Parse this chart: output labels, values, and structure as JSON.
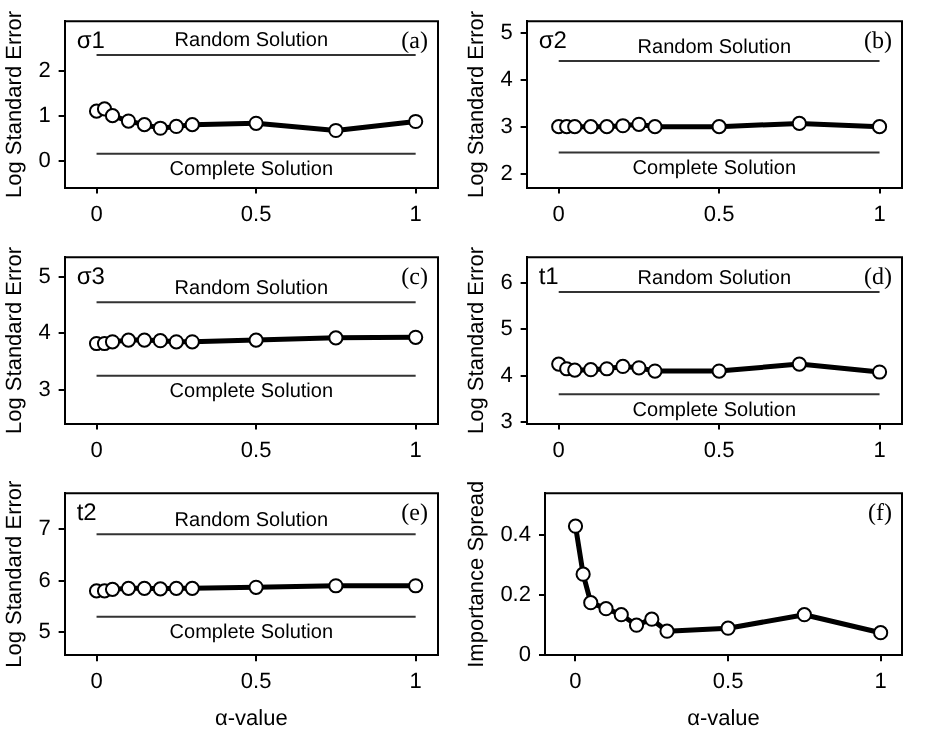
{
  "chart_data": [
    {
      "type": "line",
      "ylabel": "Log Standard Error",
      "x": [
        0,
        0.025,
        0.05,
        0.1,
        0.15,
        0.2,
        0.25,
        0.3,
        0.5,
        0.75,
        1
      ],
      "series": [
        {
          "color": "#000000",
          "values": [
            1.1,
            1.15,
            1.0,
            0.88,
            0.8,
            0.72,
            0.76,
            0.8,
            0.83,
            0.67,
            0.87
          ]
        }
      ],
      "xlim": [
        -0.1,
        1.07
      ],
      "xticks": [
        0,
        0.5,
        1
      ],
      "ylim": [
        -0.6,
        3.1
      ],
      "yticks": [
        0,
        1,
        2
      ],
      "marker": "circle",
      "grid": false,
      "legend": false,
      "annotations": [
        "σ1",
        "(a)"
      ],
      "ref_lines": [
        {
          "axis": "y",
          "value": 2.35,
          "label": "Random Solution",
          "color": "#333333"
        },
        {
          "axis": "y",
          "value": 0.15,
          "label": "Complete Solution",
          "color": "#333333"
        }
      ]
    },
    {
      "type": "line",
      "ylabel": "Log Standard Error",
      "x": [
        0,
        0.025,
        0.05,
        0.1,
        0.15,
        0.2,
        0.25,
        0.3,
        0.5,
        0.75,
        1
      ],
      "series": [
        {
          "color": "#000000",
          "values": [
            3.0,
            3.0,
            3.0,
            3.0,
            3.0,
            3.02,
            3.05,
            3.0,
            3.0,
            3.07,
            3.0
          ]
        }
      ],
      "xlim": [
        -0.1,
        1.07
      ],
      "xticks": [
        0,
        0.5,
        1
      ],
      "ylim": [
        1.7,
        5.25
      ],
      "yticks": [
        2,
        3,
        4,
        5
      ],
      "marker": "circle",
      "grid": false,
      "legend": false,
      "annotations": [
        "σ2",
        "(b)"
      ],
      "ref_lines": [
        {
          "axis": "y",
          "value": 4.4,
          "label": "Random Solution",
          "color": "#333333"
        },
        {
          "axis": "y",
          "value": 2.45,
          "label": "Complete Solution",
          "color": "#333333"
        }
      ]
    },
    {
      "type": "line",
      "ylabel": "Log Standard Error",
      "x": [
        0,
        0.025,
        0.05,
        0.1,
        0.15,
        0.2,
        0.25,
        0.3,
        0.5,
        0.75,
        1
      ],
      "series": [
        {
          "color": "#000000",
          "values": [
            3.82,
            3.82,
            3.85,
            3.88,
            3.88,
            3.87,
            3.85,
            3.85,
            3.88,
            3.92,
            3.93
          ]
        }
      ],
      "xlim": [
        -0.1,
        1.07
      ],
      "xticks": [
        0,
        0.5,
        1
      ],
      "ylim": [
        2.4,
        5.35
      ],
      "yticks": [
        3,
        4,
        5
      ],
      "marker": "circle",
      "grid": false,
      "legend": false,
      "annotations": [
        "σ3",
        "(c)"
      ],
      "ref_lines": [
        {
          "axis": "y",
          "value": 4.55,
          "label": "Random Solution",
          "color": "#333333"
        },
        {
          "axis": "y",
          "value": 3.25,
          "label": "Complete Solution",
          "color": "#333333"
        }
      ]
    },
    {
      "type": "line",
      "ylabel": "Log Standard Error",
      "x": [
        0,
        0.025,
        0.05,
        0.1,
        0.15,
        0.2,
        0.25,
        0.3,
        0.5,
        0.75,
        1
      ],
      "series": [
        {
          "color": "#000000",
          "values": [
            4.25,
            4.15,
            4.12,
            4.13,
            4.15,
            4.2,
            4.17,
            4.1,
            4.1,
            4.25,
            4.08
          ]
        }
      ],
      "xlim": [
        -0.1,
        1.07
      ],
      "xticks": [
        0,
        0.5,
        1
      ],
      "ylim": [
        2.97,
        6.55
      ],
      "yticks": [
        3,
        4,
        5,
        6
      ],
      "marker": "circle",
      "grid": false,
      "legend": false,
      "annotations": [
        "t1",
        "(d)"
      ],
      "ref_lines": [
        {
          "axis": "y",
          "value": 5.8,
          "label": "Random Solution",
          "color": "#333333"
        },
        {
          "axis": "y",
          "value": 3.6,
          "label": "Complete Solution",
          "color": "#333333"
        }
      ]
    },
    {
      "type": "line",
      "xlabel": "α-value",
      "ylabel": "Log Standard Error",
      "x": [
        0,
        0.025,
        0.05,
        0.1,
        0.15,
        0.2,
        0.25,
        0.3,
        0.5,
        0.75,
        1
      ],
      "series": [
        {
          "color": "#000000",
          "values": [
            5.8,
            5.8,
            5.83,
            5.85,
            5.85,
            5.84,
            5.85,
            5.85,
            5.87,
            5.9,
            5.9
          ]
        }
      ],
      "xlim": [
        -0.1,
        1.07
      ],
      "xticks": [
        0,
        0.5,
        1
      ],
      "ylim": [
        4.55,
        7.7
      ],
      "yticks": [
        5,
        6,
        7
      ],
      "marker": "circle",
      "grid": false,
      "legend": false,
      "annotations": [
        "t2",
        "(e)"
      ],
      "ref_lines": [
        {
          "axis": "y",
          "value": 6.9,
          "label": "Random Solution",
          "color": "#333333"
        },
        {
          "axis": "y",
          "value": 5.3,
          "label": "Complete Solution",
          "color": "#333333"
        }
      ]
    },
    {
      "type": "line",
      "xlabel": "α-value",
      "ylabel": "Importance Spread",
      "x": [
        0,
        0.025,
        0.05,
        0.1,
        0.15,
        0.2,
        0.25,
        0.3,
        0.5,
        0.75,
        1
      ],
      "series": [
        {
          "color": "#000000",
          "values": [
            0.43,
            0.27,
            0.175,
            0.155,
            0.135,
            0.1,
            0.12,
            0.08,
            0.09,
            0.135,
            0.075
          ]
        }
      ],
      "xlim": [
        -0.1,
        1.07
      ],
      "xticks": [
        0,
        0.5,
        1
      ],
      "ylim": [
        0,
        0.54
      ],
      "yticks": [
        0,
        0.2,
        0.4
      ],
      "marker": "circle",
      "grid": false,
      "legend": false,
      "annotations": [
        "(f)"
      ]
    }
  ]
}
